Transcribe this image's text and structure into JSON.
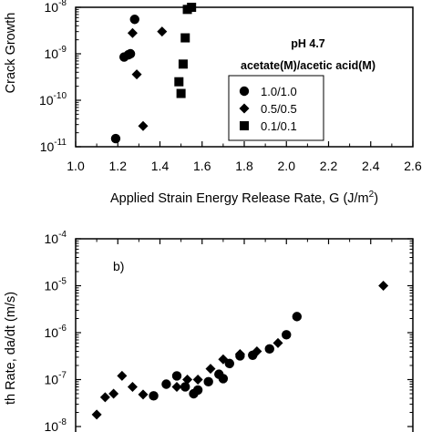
{
  "chart_data": [
    {
      "panel": "a",
      "type": "scatter",
      "xlabel": "Applied Strain Energy Release Rate, G (J/m",
      "xlabel_sup": "2",
      "xlabel_end": ")",
      "ylabel": "Crack Growth",
      "xlim": [
        1.0,
        2.6
      ],
      "ylim_exp": [
        -11,
        -8
      ],
      "y_scale": "log",
      "x_ticks": [
        "1.0",
        "1.2",
        "1.4",
        "1.6",
        "1.8",
        "2.0",
        "2.2",
        "2.4",
        "2.6"
      ],
      "x_tick_values": [
        1.0,
        1.2,
        1.4,
        1.6,
        1.8,
        2.0,
        2.2,
        2.4,
        2.6
      ],
      "y_tick_exponents": [
        -11,
        -10,
        -9,
        -8
      ],
      "legend": {
        "title_line1": "pH 4.7",
        "title_line2": "acetate(M)/acetic acid(M)",
        "placement": "center-right"
      },
      "series": [
        {
          "name": "1.0/1.0",
          "marker": "circle",
          "points": [
            [
              1.19,
              1.5e-11
            ],
            [
              1.23,
              8.5e-10
            ],
            [
              1.26,
              1e-09
            ],
            [
              1.25,
              9.5e-10
            ],
            [
              1.28,
              5.5e-09
            ]
          ]
        },
        {
          "name": "0.5/0.5",
          "marker": "diamond",
          "points": [
            [
              1.27,
              2.8e-09
            ],
            [
              1.29,
              3.6e-10
            ],
            [
              1.32,
              2.8e-11
            ],
            [
              1.41,
              3e-09
            ]
          ]
        },
        {
          "name": "0.1/0.1",
          "marker": "square",
          "points": [
            [
              1.49,
              2.5e-10
            ],
            [
              1.5,
              1.4e-10
            ],
            [
              1.51,
              6e-10
            ],
            [
              1.52,
              2.2e-09
            ],
            [
              1.53,
              9e-09
            ],
            [
              1.55,
              1e-08
            ]
          ]
        }
      ]
    },
    {
      "panel": "b",
      "type": "scatter",
      "label": "b)",
      "ylabel_part1": "th Rate,  da/dt  (m/s)",
      "y_scale": "log",
      "xlim": [
        1.0,
        2.6
      ],
      "ylim_exp": [
        -8,
        -4
      ],
      "y_tick_exponents": [
        -8,
        -7,
        -6,
        -5,
        -4
      ],
      "series": [
        {
          "name": "circle",
          "marker": "circle",
          "points": [
            [
              1.37,
              4.5e-08
            ],
            [
              1.43,
              8e-08
            ],
            [
              1.48,
              1.2e-07
            ],
            [
              1.52,
              7e-08
            ],
            [
              1.58,
              6e-08
            ],
            [
              1.63,
              9e-08
            ],
            [
              1.68,
              1.3e-07
            ],
            [
              1.73,
              2.2e-07
            ],
            [
              1.78,
              3.2e-07
            ],
            [
              1.84,
              3.3e-07
            ],
            [
              1.92,
              4.5e-07
            ],
            [
              2.0,
              9e-07
            ],
            [
              2.05,
              2.2e-06
            ],
            [
              1.7,
              1.05e-07
            ],
            [
              1.56,
              5e-08
            ]
          ]
        },
        {
          "name": "diamond",
          "marker": "diamond",
          "points": [
            [
              1.1,
              1.8e-08
            ],
            [
              1.14,
              4.2e-08
            ],
            [
              1.18,
              5e-08
            ],
            [
              1.22,
              1.2e-07
            ],
            [
              1.27,
              7e-08
            ],
            [
              1.32,
              4.8e-08
            ],
            [
              1.48,
              7e-08
            ],
            [
              1.53,
              1e-07
            ],
            [
              1.58,
              1e-07
            ],
            [
              1.64,
              1.7e-07
            ],
            [
              1.7,
              2.7e-07
            ],
            [
              1.78,
              3.5e-07
            ],
            [
              1.86,
              4e-07
            ],
            [
              1.96,
              6e-07
            ],
            [
              2.46,
              1e-05
            ]
          ]
        }
      ]
    }
  ]
}
